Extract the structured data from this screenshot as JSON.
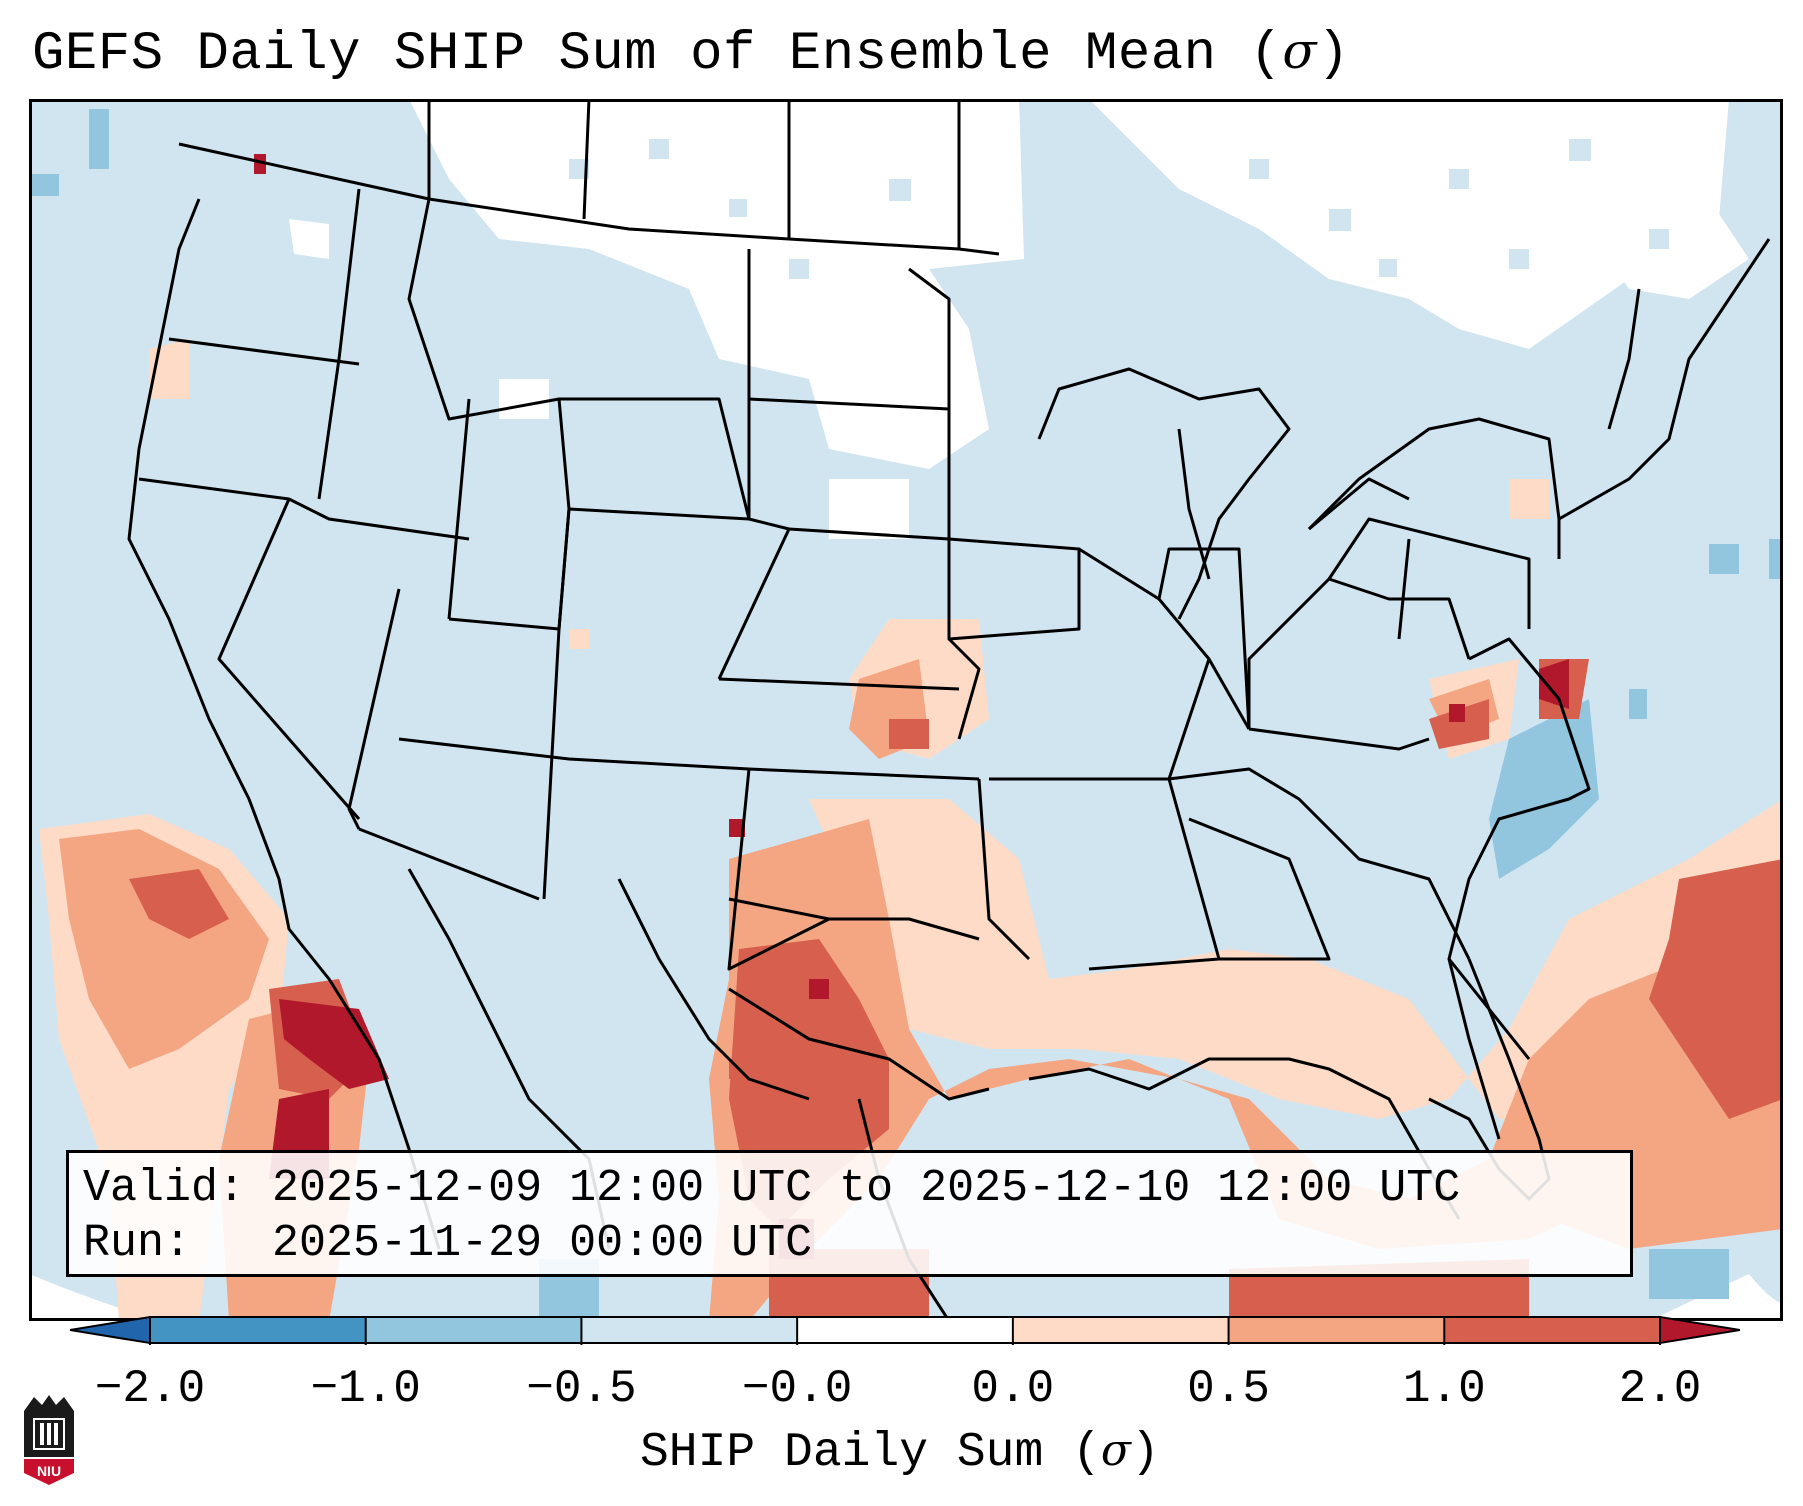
{
  "title": "GEFS Daily SHIP Sum of Ensemble Mean (",
  "title_symbol": "σ",
  "title_end": ")",
  "info": {
    "valid_label": "Valid:",
    "valid_value": "2025-12-09 12:00 UTC to 2025-12-10 12:00 UTC",
    "run_label": "Run:",
    "run_value": "2025-11-29 00:00 UTC"
  },
  "colorbar": {
    "ticks": [
      "−2.0",
      "−1.0",
      "−0.5",
      "−0.0",
      "0.0",
      "0.5",
      "1.0",
      "2.0"
    ],
    "bins": [
      "#4393c3",
      "#92c5de",
      "#d1e5f0",
      "#ffffff",
      "#fddbc7",
      "#f4a582",
      "#d6604d"
    ],
    "extend_low": "#2166ac",
    "extend_high": "#b2182b",
    "label": "SHIP Daily Sum (",
    "label_symbol": "σ",
    "label_end": ")"
  },
  "logo": {
    "text": "NIU",
    "color": "#c8102e"
  },
  "map": {
    "background_color": "#d1e5f0",
    "ocean_outside_color": "#ffffff"
  }
}
